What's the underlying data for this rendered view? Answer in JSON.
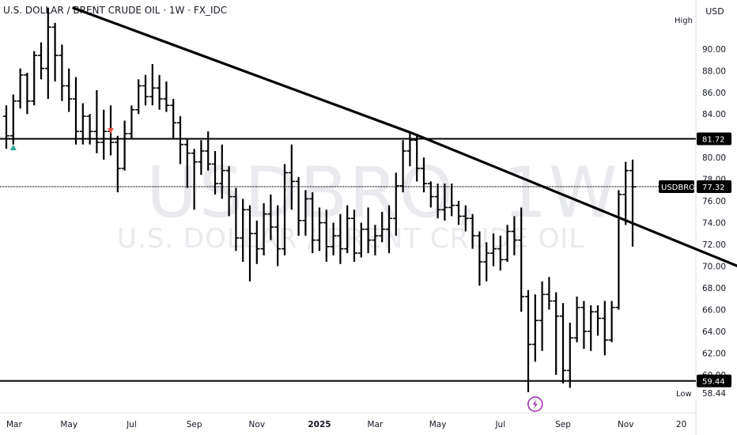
{
  "header": {
    "title": "U.S. DOLLAR / BRENT CRUDE OIL · 1W · FX_IDC",
    "currency_button": "USD"
  },
  "watermark": {
    "symbol": "USDBRO, 1W",
    "description": "U.S. DOLLAR / BRENT CRUDE OIL"
  },
  "colors": {
    "bars": "#000000",
    "up_marker": "#26a69a",
    "down_marker": "#ef5350",
    "event_icon": "#9c27b0"
  },
  "chart_data": {
    "type": "ohlc",
    "title": "U.S. DOLLAR / BRENT CRUDE OIL · 1W · FX_IDC",
    "interval": "1W",
    "ylim": [
      56.5,
      94.5
    ],
    "yticks": [
      60,
      62,
      64,
      66,
      68,
      70,
      72,
      74,
      76,
      78,
      80,
      82,
      84,
      86,
      88,
      90
    ],
    "ytick_labels": [
      "60.00",
      "62.00",
      "64.00",
      "66.00",
      "68.00",
      "70.00",
      "72.00",
      "74.00",
      "76.00",
      "78.00",
      "80.00",
      "82.00",
      "84.00",
      "86.00",
      "88.00",
      "90.00"
    ],
    "x_labels": [
      "Mar",
      "May",
      "Jul",
      "Sep",
      "Nov",
      "2025",
      "Mar",
      "May",
      "Jul",
      "Sep",
      "Nov",
      "20"
    ],
    "x_label_weeks": [
      0,
      9,
      18,
      27,
      36,
      45,
      53,
      62,
      71,
      80,
      89,
      97
    ],
    "week_count": 98,
    "bars": [
      [
        83.8,
        84.8,
        80.8,
        82.0
      ],
      [
        82.0,
        85.8,
        81.2,
        85.2
      ],
      [
        85.2,
        88.2,
        84.5,
        87.6
      ],
      [
        87.6,
        87.8,
        84.0,
        85.2
      ],
      [
        85.2,
        89.8,
        84.8,
        89.4
      ],
      [
        89.4,
        90.6,
        87.2,
        88.2
      ],
      [
        88.2,
        93.8,
        85.4,
        92.0
      ],
      [
        92.0,
        92.4,
        87.0,
        89.4
      ],
      [
        89.4,
        90.4,
        85.2,
        86.6
      ],
      [
        86.6,
        88.2,
        84.2,
        85.4
      ],
      [
        85.4,
        87.4,
        81.2,
        82.4
      ],
      [
        82.4,
        85.0,
        81.2,
        83.8
      ],
      [
        83.8,
        84.0,
        81.2,
        82.4
      ],
      [
        82.4,
        86.2,
        80.4,
        81.4
      ],
      [
        81.4,
        84.4,
        79.8,
        82.4
      ],
      [
        82.4,
        84.8,
        80.2,
        81.4
      ],
      [
        81.4,
        82.0,
        76.8,
        79.0
      ],
      [
        79.0,
        83.4,
        78.8,
        82.2
      ],
      [
        82.2,
        84.8,
        81.8,
        84.4
      ],
      [
        84.4,
        87.2,
        84.0,
        86.6
      ],
      [
        86.6,
        87.6,
        84.8,
        85.6
      ],
      [
        85.6,
        88.6,
        84.8,
        86.4
      ],
      [
        86.4,
        87.6,
        84.4,
        85.4
      ],
      [
        85.4,
        87.0,
        84.2,
        84.8
      ],
      [
        84.8,
        85.4,
        81.8,
        83.2
      ],
      [
        83.2,
        83.8,
        79.4,
        81.2
      ],
      [
        81.2,
        81.8,
        77.2,
        80.4
      ],
      [
        80.4,
        80.8,
        75.2,
        79.6
      ],
      [
        79.6,
        81.6,
        78.4,
        80.6
      ],
      [
        80.6,
        82.4,
        78.8,
        79.4
      ],
      [
        79.4,
        80.6,
        76.6,
        77.6
      ],
      [
        77.6,
        81.2,
        76.2,
        78.8
      ],
      [
        78.8,
        79.2,
        74.6,
        76.4
      ],
      [
        76.4,
        77.2,
        71.4,
        72.6
      ],
      [
        72.6,
        76.2,
        70.4,
        75.2
      ],
      [
        75.2,
        75.6,
        68.6,
        73.0
      ],
      [
        73.0,
        74.2,
        70.2,
        71.6
      ],
      [
        71.6,
        75.8,
        71.0,
        74.8
      ],
      [
        74.8,
        76.6,
        72.4,
        73.6
      ],
      [
        73.6,
        75.6,
        70.0,
        71.6
      ],
      [
        71.6,
        79.4,
        71.0,
        78.6
      ],
      [
        78.6,
        81.2,
        75.2,
        77.8
      ],
      [
        77.8,
        78.2,
        72.8,
        74.2
      ],
      [
        74.2,
        77.0,
        72.8,
        76.2
      ],
      [
        76.2,
        76.8,
        71.2,
        72.4
      ],
      [
        72.4,
        75.4,
        71.4,
        74.0
      ],
      [
        74.0,
        75.2,
        70.4,
        71.8
      ],
      [
        71.8,
        74.0,
        71.0,
        72.8
      ],
      [
        72.8,
        74.8,
        70.2,
        71.6
      ],
      [
        71.6,
        75.6,
        71.2,
        74.4
      ],
      [
        74.4,
        75.2,
        70.4,
        71.2
      ],
      [
        71.2,
        74.0,
        70.8,
        73.4
      ],
      [
        73.4,
        75.4,
        71.2,
        72.4
      ],
      [
        72.4,
        73.8,
        71.0,
        72.8
      ],
      [
        72.8,
        75.0,
        72.2,
        73.4
      ],
      [
        73.4,
        75.6,
        71.2,
        74.4
      ],
      [
        74.4,
        78.6,
        72.8,
        77.4
      ],
      [
        77.4,
        81.6,
        76.8,
        80.6
      ],
      [
        80.6,
        82.4,
        79.2,
        81.6
      ],
      [
        81.6,
        82.2,
        77.8,
        79.0
      ],
      [
        79.0,
        80.0,
        76.8,
        77.6
      ],
      [
        77.6,
        77.8,
        75.4,
        76.4
      ],
      [
        76.4,
        77.6,
        74.4,
        75.2
      ],
      [
        75.2,
        77.6,
        74.2,
        75.4
      ],
      [
        75.4,
        77.6,
        74.6,
        75.6
      ],
      [
        75.6,
        76.0,
        73.8,
        74.6
      ],
      [
        74.6,
        75.6,
        73.2,
        74.4
      ],
      [
        74.4,
        74.8,
        71.6,
        72.8
      ],
      [
        72.8,
        73.2,
        68.2,
        70.4
      ],
      [
        70.4,
        72.2,
        68.6,
        71.2
      ],
      [
        71.2,
        73.0,
        70.0,
        71.6
      ],
      [
        71.6,
        72.8,
        69.6,
        70.6
      ],
      [
        70.6,
        73.8,
        70.4,
        73.2
      ],
      [
        73.2,
        74.6,
        71.0,
        72.4
      ],
      [
        72.4,
        75.4,
        65.8,
        67.2
      ],
      [
        67.2,
        67.8,
        58.4,
        62.8
      ],
      [
        62.8,
        67.4,
        61.2,
        65.0
      ],
      [
        65.0,
        68.6,
        62.2,
        67.4
      ],
      [
        67.4,
        69.0,
        66.0,
        66.8
      ],
      [
        66.8,
        67.6,
        60.0,
        65.4
      ],
      [
        65.4,
        66.6,
        59.2,
        60.4
      ],
      [
        60.4,
        64.8,
        58.8,
        63.4
      ],
      [
        63.4,
        67.2,
        63.0,
        66.2
      ],
      [
        66.2,
        66.8,
        62.4,
        64.0
      ],
      [
        64.0,
        66.4,
        62.2,
        65.8
      ],
      [
        65.8,
        66.4,
        63.6,
        65.2
      ],
      [
        65.2,
        66.8,
        61.8,
        63.2
      ],
      [
        63.2,
        66.8,
        63.0,
        66.2
      ],
      [
        66.2,
        77.0,
        66.0,
        76.6
      ],
      [
        76.6,
        79.6,
        73.8,
        78.8
      ],
      [
        78.8,
        79.8,
        71.8,
        77.3
      ]
    ],
    "trendline": {
      "points": [
        [
          9.5,
          93.8
        ],
        [
          58.5,
          82.2
        ],
        [
          105.5,
          69.9
        ]
      ]
    },
    "horizontal_levels": [
      {
        "value": 81.72,
        "label": "81.72",
        "style": "solid"
      },
      {
        "value": 77.32,
        "label": "77.32",
        "style": "dotted",
        "series_tag": "USDBRO"
      },
      {
        "value": 59.44,
        "label": "59.44",
        "style": "solid"
      }
    ],
    "high_label": "High",
    "low_label": "Low",
    "low_value": "58.44",
    "low_partial_tick": "58.00",
    "last_price": "77.32",
    "series_tag": "USDBRO",
    "signals": [
      {
        "week": 1,
        "type": "up"
      },
      {
        "week": 15,
        "type": "down"
      }
    ],
    "event_icon_week": 76
  }
}
